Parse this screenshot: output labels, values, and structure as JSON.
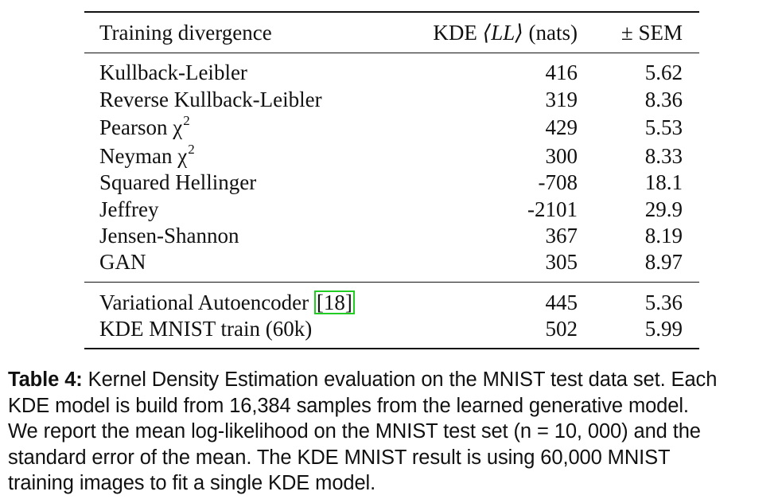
{
  "table": {
    "header": {
      "col1": "Training divergence",
      "col2_prefix": "KDE ",
      "col2_math": "⟨LL⟩",
      "col2_suffix": " (nats)",
      "col3": "± SEM"
    },
    "group1": [
      {
        "name": "Kullback-Leibler",
        "kde": "416",
        "sem": "5.62"
      },
      {
        "name": "Reverse Kullback-Leibler",
        "kde": "319",
        "sem": "8.36"
      },
      {
        "name": "Pearson χ",
        "sup": "2",
        "kde": "429",
        "sem": "5.53"
      },
      {
        "name": "Neyman χ",
        "sup": "2",
        "kde": "300",
        "sem": "8.33"
      },
      {
        "name": "Squared Hellinger",
        "kde": "-708",
        "sem": "18.1"
      },
      {
        "name": "Jeffrey",
        "kde": "-2101",
        "sem": "29.9"
      },
      {
        "name": "Jensen-Shannon",
        "kde": "367",
        "sem": "8.19"
      },
      {
        "name": "GAN",
        "kde": "305",
        "sem": "8.97"
      }
    ],
    "group2": [
      {
        "name": "Variational Autoencoder ",
        "cite": "[18]",
        "kde": "445",
        "sem": "5.36"
      },
      {
        "name": "KDE MNIST train (60k)",
        "kde": "502",
        "sem": "5.99"
      }
    ]
  },
  "caption": {
    "label": "Table 4:",
    "lines": [
      " Kernel Density Estimation evaluation on the MNIST test data set. Each",
      "KDE model is build from 16,384 samples from the learned generative model.",
      "We report the mean log-likelihood on the MNIST test set (n = 10, 000) and the",
      "standard error of the mean.  The KDE MNIST result is using 60,000 MNIST",
      "training images to fit a single KDE model."
    ]
  }
}
